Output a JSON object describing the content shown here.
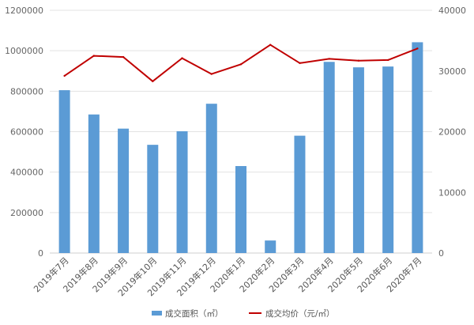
{
  "chart_data": {
    "type": "bar",
    "categories": [
      "2019年7月",
      "2019年8月",
      "2019年9月",
      "2019年10月",
      "2019年11月",
      "2019年12月",
      "2020年1月",
      "2020年2月",
      "2020年3月",
      "2020年4月",
      "2020年5月",
      "2020年6月",
      "2020年7月"
    ],
    "series": [
      {
        "name": "成交面积（㎡）",
        "type": "bar",
        "axis": "left",
        "color": "#5b9bd5",
        "values": [
          805000,
          685000,
          615000,
          535000,
          602000,
          738000,
          430000,
          62000,
          580000,
          945000,
          918000,
          922000,
          1042000
        ]
      },
      {
        "name": "成交均价（元/㎡）",
        "type": "line",
        "axis": "right",
        "color": "#c00000",
        "values": [
          29200,
          32500,
          32300,
          28300,
          32100,
          29500,
          31100,
          34300,
          31300,
          32000,
          31700,
          31800,
          33700
        ]
      }
    ],
    "ylim_left": [
      0,
      1200000
    ],
    "ylim_right": [
      0,
      40000
    ],
    "yticks_left": [
      "0",
      "200000",
      "400000",
      "600000",
      "800000",
      "1000000",
      "1200000"
    ],
    "yticks_right": [
      "0",
      "10000",
      "20000",
      "30000",
      "40000"
    ],
    "title": "",
    "xlabel": "",
    "ylabel": "",
    "grid": true,
    "legend_position": "bottom"
  }
}
